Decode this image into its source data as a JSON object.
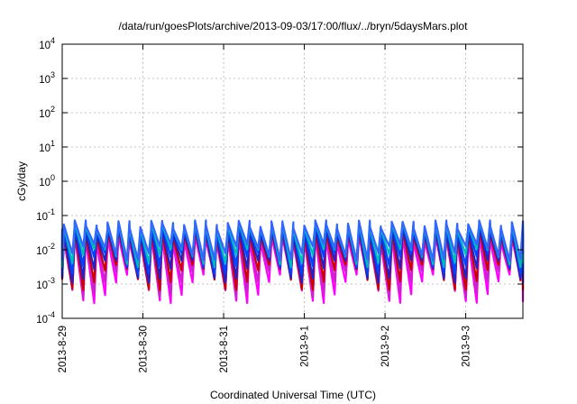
{
  "chart_data": {
    "type": "line",
    "title": "/data/run/goesPlots/archive/2013-09-03/17:00/flux/../bryn/5daysMars.plot",
    "xlabel": "Coordinated Universal Time (UTC)",
    "ylabel": "cGy/day",
    "y_scale": "log",
    "ylim": [
      0.0001,
      10000
    ],
    "y_ticks": [
      {
        "base": "10",
        "exp": "-4",
        "value": 0.0001
      },
      {
        "base": "10",
        "exp": "-3",
        "value": 0.001
      },
      {
        "base": "10",
        "exp": "-2",
        "value": 0.01
      },
      {
        "base": "10",
        "exp": "-1",
        "value": 0.1
      },
      {
        "base": "10",
        "exp": "0",
        "value": 1
      },
      {
        "base": "10",
        "exp": "1",
        "value": 10
      },
      {
        "base": "10",
        "exp": "2",
        "value": 100
      },
      {
        "base": "10",
        "exp": "3",
        "value": 1000
      },
      {
        "base": "10",
        "exp": "4",
        "value": 10000
      }
    ],
    "xlim": [
      "2013-08-29 00:00",
      "2013-09-03 17:00"
    ],
    "x_ticks": [
      "2013-8-29",
      "2013-8-30",
      "2013-8-31",
      "2013-9-1",
      "2013-9-2",
      "2013-9-3"
    ],
    "grid": true,
    "oscillation_period_hours": 3.25,
    "series": [
      {
        "color": "#ff00ff",
        "peak": 0.02,
        "trough": 0.0004
      },
      {
        "color": "#cc22cc",
        "peak": 0.025,
        "trough": 0.0006
      },
      {
        "color": "#cc0000",
        "peak": 0.03,
        "trough": 0.0009
      },
      {
        "color": "#2222cc",
        "peak": 0.035,
        "trough": 0.0015
      },
      {
        "color": "#0044ff",
        "peak": 0.045,
        "trough": 0.0025
      },
      {
        "color": "#00bbbb",
        "peak": 0.05,
        "trough": 0.004
      },
      {
        "color": "#3366ff",
        "peak": 0.055,
        "trough": 0.006
      }
    ]
  }
}
